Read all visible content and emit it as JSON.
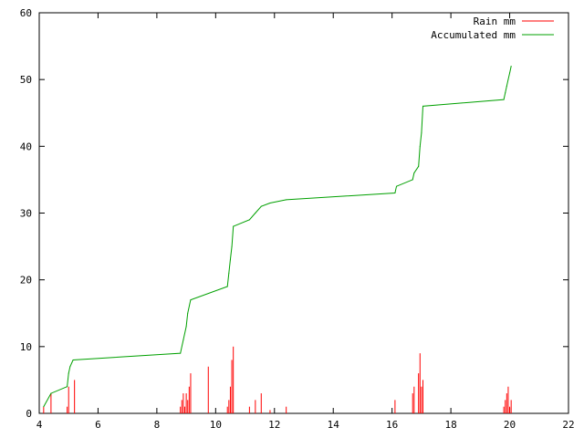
{
  "chart_data": {
    "type": "line",
    "title": "",
    "xlabel": "",
    "ylabel": "",
    "xlim": [
      4,
      22
    ],
    "ylim": [
      0,
      60
    ],
    "x_ticks": [
      "4",
      "6",
      "8",
      "10",
      "12",
      "14",
      "16",
      "18",
      "20",
      "22"
    ],
    "y_ticks": [
      "0",
      "10",
      "20",
      "30",
      "40",
      "50",
      "60"
    ],
    "grid": false,
    "legend_position": "top-right",
    "series": [
      {
        "name": "Rain mm",
        "kind": "impulse",
        "color": "#ff0000",
        "points": [
          [
            4.15,
            1
          ],
          [
            4.4,
            3
          ],
          [
            4.95,
            1
          ],
          [
            5.0,
            4
          ],
          [
            5.2,
            5
          ],
          [
            8.8,
            1
          ],
          [
            8.85,
            2
          ],
          [
            8.9,
            3
          ],
          [
            8.95,
            1
          ],
          [
            9.0,
            3
          ],
          [
            9.05,
            2
          ],
          [
            9.1,
            4
          ],
          [
            9.15,
            6
          ],
          [
            9.75,
            7
          ],
          [
            10.4,
            1
          ],
          [
            10.45,
            2
          ],
          [
            10.5,
            4
          ],
          [
            10.55,
            8
          ],
          [
            10.6,
            10
          ],
          [
            11.15,
            1
          ],
          [
            11.35,
            2
          ],
          [
            11.55,
            3
          ],
          [
            11.85,
            0.5
          ],
          [
            12.4,
            1
          ],
          [
            16.1,
            2
          ],
          [
            16.7,
            3
          ],
          [
            16.75,
            4
          ],
          [
            16.9,
            6
          ],
          [
            16.95,
            9
          ],
          [
            17.0,
            4
          ],
          [
            17.05,
            5
          ],
          [
            19.8,
            1
          ],
          [
            19.85,
            2
          ],
          [
            19.9,
            3
          ],
          [
            19.95,
            4
          ],
          [
            20.0,
            1
          ],
          [
            20.05,
            2
          ]
        ]
      },
      {
        "name": "Accumulated mm",
        "kind": "line",
        "color": "#00a000",
        "points": [
          [
            4.15,
            1
          ],
          [
            4.4,
            3
          ],
          [
            4.95,
            4
          ],
          [
            5.0,
            6
          ],
          [
            5.05,
            7
          ],
          [
            5.15,
            8
          ],
          [
            8.8,
            9
          ],
          [
            8.9,
            11
          ],
          [
            9.0,
            13
          ],
          [
            9.05,
            15
          ],
          [
            9.15,
            17
          ],
          [
            10.4,
            19
          ],
          [
            10.45,
            21
          ],
          [
            10.5,
            23
          ],
          [
            10.55,
            25
          ],
          [
            10.6,
            28
          ],
          [
            11.15,
            29
          ],
          [
            11.35,
            30
          ],
          [
            11.55,
            31
          ],
          [
            11.85,
            31.5
          ],
          [
            12.4,
            32
          ],
          [
            16.1,
            33
          ],
          [
            16.15,
            34
          ],
          [
            16.7,
            35
          ],
          [
            16.75,
            36
          ],
          [
            16.9,
            37
          ],
          [
            16.95,
            40
          ],
          [
            17.0,
            42
          ],
          [
            17.05,
            46
          ],
          [
            19.8,
            47
          ],
          [
            19.85,
            48
          ],
          [
            19.9,
            49
          ],
          [
            19.95,
            50
          ],
          [
            20.0,
            51
          ],
          [
            20.05,
            52
          ]
        ]
      }
    ]
  }
}
